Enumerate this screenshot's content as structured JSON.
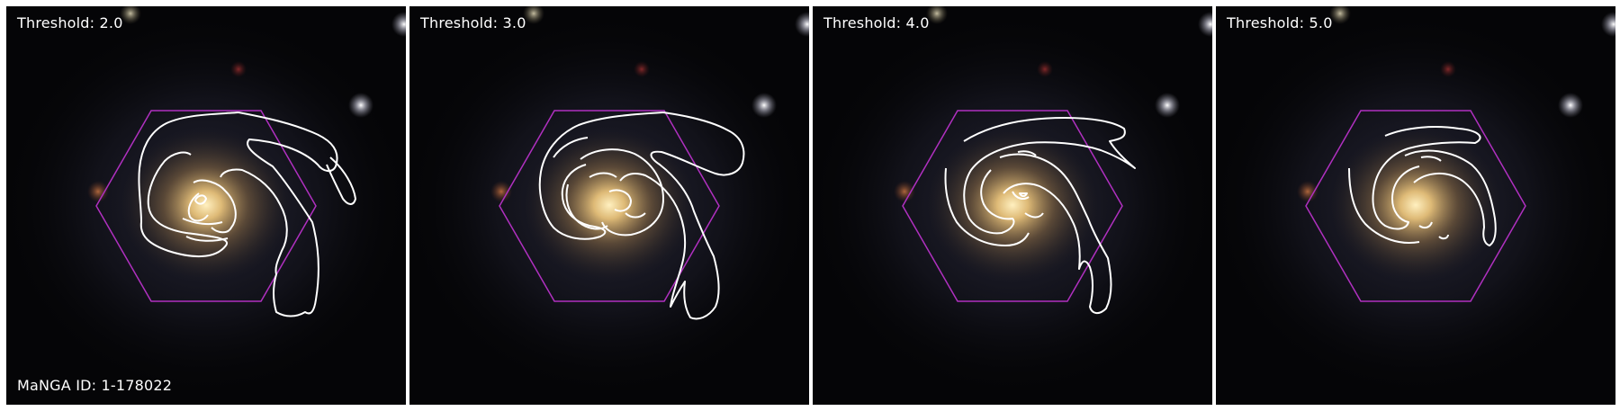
{
  "panels": [
    {
      "threshold_label": "Threshold: 2.0"
    },
    {
      "threshold_label": "Threshold: 3.0"
    },
    {
      "threshold_label": "Threshold: 4.0"
    },
    {
      "threshold_label": "Threshold: 5.0"
    }
  ],
  "manga_label": "MaNGA ID: 1-178022",
  "colors": {
    "hexagon": "#b030c0",
    "contour": "#ffffff",
    "galaxy_core": "#e8c27a",
    "background": "#050507"
  }
}
